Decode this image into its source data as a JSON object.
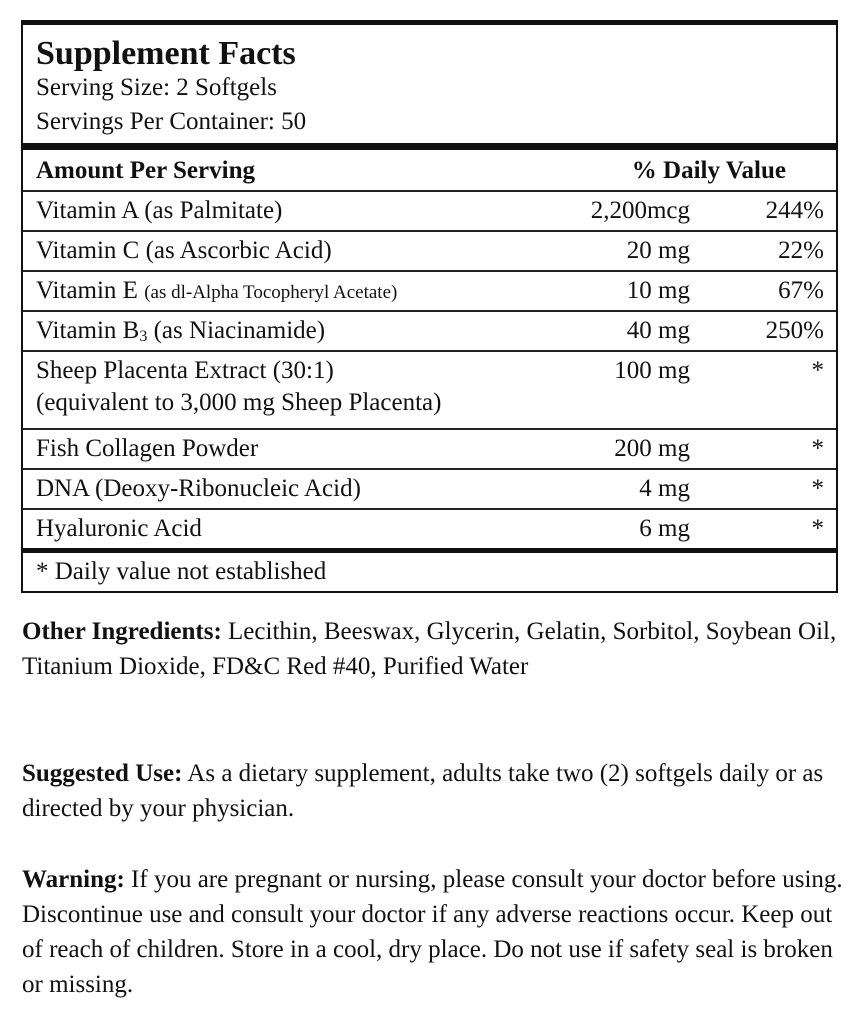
{
  "title": "Supplement Facts",
  "serving_size": "Serving Size: 2 Softgels",
  "servings_per_container": "Servings Per Container: 50",
  "header": {
    "amount": "Amount Per Serving",
    "dv": "% Daily Value"
  },
  "rows": [
    {
      "name": "Vitamin A (as Palmitate)",
      "amount": "2,200mcg",
      "dv": "244%"
    },
    {
      "name": "Vitamin C (as Ascorbic Acid)",
      "amount": "20 mg",
      "dv": "22%"
    },
    {
      "name": "Vitamin E ",
      "name_small": "(as dl-Alpha Tocopheryl Acetate)",
      "amount": "10 mg",
      "dv": "67%"
    },
    {
      "name": "Vitamin B",
      "sub": "3",
      "name_rest": " (as Niacinamide)",
      "amount": "40 mg",
      "dv": "250%"
    },
    {
      "name": "Sheep Placenta Extract (30:1)",
      "line2": "(equivalent to 3,000 mg Sheep Placenta)",
      "amount": "100 mg",
      "dv": "*"
    },
    {
      "name": "Fish Collagen Powder",
      "amount": "200 mg",
      "dv": "*"
    },
    {
      "name": "DNA (Deoxy-Ribonucleic Acid)",
      "amount": "4 mg",
      "dv": "*"
    },
    {
      "name": "Hyaluronic Acid",
      "amount": "6 mg",
      "dv": "*"
    }
  ],
  "footnote": "* Daily value not established",
  "other": {
    "label": "Other Ingredients:",
    "text": " Lecithin, Beeswax, Glycerin, Gelatin, Sorbitol, Soybean Oil, Titanium Dioxide, FD&C Red #40, Purified Water"
  },
  "use": {
    "label": "Suggested Use:",
    "text": " As a dietary supplement, adults take two (2) softgels daily or as directed by your physician."
  },
  "warning": {
    "label": "Warning:",
    "text": " If you are pregnant or nursing, please consult your doctor before using. Discontinue use and consult your doctor if any adverse reactions occur. Keep out of reach of children. Store in a cool, dry place. Do not use if safety seal is broken or missing."
  }
}
